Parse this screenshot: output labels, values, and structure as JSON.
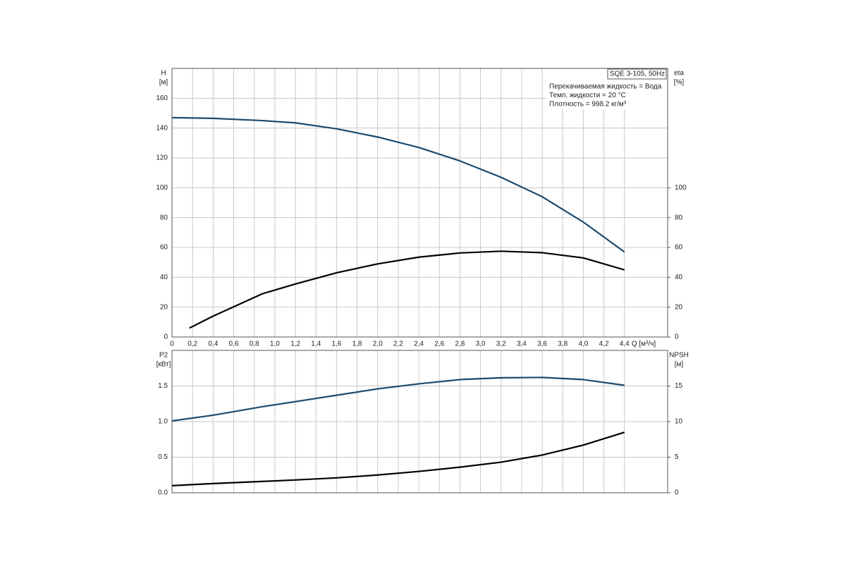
{
  "chart_data": [
    {
      "type": "line",
      "title": "SQE 3-105, 50Hz",
      "annotations": [
        "Перекачиваемая жидкость = Вода",
        "Темп. жидкости = 20 °C",
        "Плотность = 998.2 кг/м³"
      ],
      "ylabel": "H",
      "yunit": "[м]",
      "y2label": "eta",
      "y2unit": "[%]",
      "xlabel": "Q [м³/ч]",
      "xlim": [
        0,
        4.82
      ],
      "ylim": [
        0,
        180
      ],
      "y2lim": [
        0,
        180
      ],
      "grid": true,
      "xticks": [
        0,
        {
          "value": 0.2,
          "label": "0,2"
        },
        {
          "value": 0.4,
          "label": "0,4"
        },
        {
          "value": 0.6,
          "label": "0,6"
        },
        {
          "value": 0.8,
          "label": "0,8"
        },
        {
          "value": 1,
          "label": "1,0"
        },
        {
          "value": 1.2,
          "label": "1,2"
        },
        {
          "value": 1.4,
          "label": "1,4"
        },
        {
          "value": 1.6,
          "label": "1,6"
        },
        {
          "value": 1.8,
          "label": "1,8"
        },
        {
          "value": 2,
          "label": "2,0"
        },
        {
          "value": 2.2,
          "label": "2,2"
        },
        {
          "value": 2.4,
          "label": "2,4"
        },
        {
          "value": 2.6,
          "label": "2,6"
        },
        {
          "value": 2.8,
          "label": "2,8"
        },
        {
          "value": 3,
          "label": "3,0"
        },
        {
          "value": 3.2,
          "label": "3,2"
        },
        {
          "value": 3.4,
          "label": "3,4"
        },
        {
          "value": 3.6,
          "label": "3,6"
        },
        {
          "value": 3.8,
          "label": "3,8"
        },
        {
          "value": 4,
          "label": "4,0"
        },
        {
          "value": 4.2,
          "label": "4,2"
        },
        {
          "value": 4.4,
          "label": "4,4"
        }
      ],
      "yticks": [
        0,
        20,
        40,
        60,
        80,
        100,
        120,
        140,
        160
      ],
      "y2ticks": [
        0,
        20,
        40,
        60,
        80,
        100
      ],
      "series": [
        {
          "name": "H",
          "color": "#1b4a6e",
          "x": [
            0,
            0.4,
            0.88,
            1.2,
            1.6,
            2.0,
            2.4,
            2.8,
            3.2,
            3.6,
            4.0,
            4.4
          ],
          "values": [
            147,
            146.5,
            145,
            143.5,
            139.5,
            134,
            127,
            118,
            107,
            94,
            77,
            57
          ]
        },
        {
          "name": "eta",
          "color": "#000000",
          "axis": "y2",
          "x": [
            0.17,
            0.4,
            0.88,
            1.2,
            1.6,
            2.0,
            2.4,
            2.8,
            3.2,
            3.6,
            4.0,
            4.4
          ],
          "values": [
            6,
            14,
            29,
            35.5,
            43,
            49,
            53.5,
            56.3,
            57.5,
            56.5,
            53,
            45
          ]
        }
      ]
    },
    {
      "type": "line",
      "ylabel": "P2",
      "yunit": "[кВт]",
      "y2label": "NPSH",
      "y2unit": "[м]",
      "xlim": [
        0,
        4.82
      ],
      "ylim": [
        0,
        2.0
      ],
      "y2lim": [
        0,
        20
      ],
      "grid": true,
      "yticks": [
        {
          "value": 0,
          "label": "0.0"
        },
        0.5,
        {
          "value": 1,
          "label": "1.0"
        },
        1.5
      ],
      "y2ticks": [
        0,
        5,
        10,
        15
      ],
      "series": [
        {
          "name": "P2",
          "color": "#1b4a6e",
          "x": [
            0,
            0.4,
            0.88,
            1.2,
            1.6,
            2.0,
            2.4,
            2.8,
            3.2,
            3.6,
            4.0,
            4.4
          ],
          "values": [
            1.01,
            1.09,
            1.21,
            1.28,
            1.37,
            1.46,
            1.53,
            1.59,
            1.615,
            1.62,
            1.59,
            1.51
          ]
        },
        {
          "name": "NPSH",
          "color": "#000000",
          "axis": "y2",
          "x": [
            0,
            0.4,
            0.88,
            1.2,
            1.6,
            2.0,
            2.4,
            2.8,
            3.2,
            3.6,
            4.0,
            4.4
          ],
          "values": [
            1.0,
            1.3,
            1.6,
            1.8,
            2.1,
            2.5,
            3.0,
            3.6,
            4.3,
            5.3,
            6.7,
            8.5
          ]
        }
      ]
    }
  ]
}
